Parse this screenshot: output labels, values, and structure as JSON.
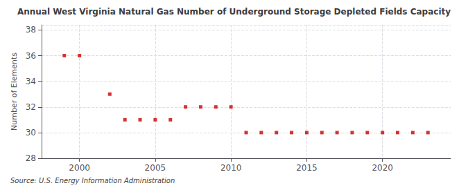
{
  "chart_data": {
    "type": "scatter",
    "title": "Annual West Virginia Natural Gas Number of Underground Storage Depleted Fields Capacity",
    "ylabel": "Number of Elements",
    "source": "Source: U.S. Energy Information Administration",
    "x": [
      1999,
      2000,
      2002,
      2003,
      2004,
      2005,
      2006,
      2007,
      2008,
      2009,
      2010,
      2011,
      2012,
      2013,
      2014,
      2015,
      2016,
      2017,
      2018,
      2019,
      2020,
      2021,
      2022,
      2023
    ],
    "values": [
      36,
      36,
      33,
      31,
      31,
      31,
      31,
      32,
      32,
      32,
      32,
      30,
      30,
      30,
      30,
      30,
      30,
      30,
      30,
      30,
      30,
      30,
      30,
      30
    ],
    "color": "#cc0000",
    "marker": "square",
    "xlim": [
      1997.5,
      2024.5
    ],
    "xticks": [
      2000,
      2005,
      2010,
      2015,
      2020
    ],
    "ylim": [
      28,
      38.4
    ],
    "yticks": [
      28,
      30,
      32,
      34,
      36,
      38
    ],
    "grid": true
  }
}
